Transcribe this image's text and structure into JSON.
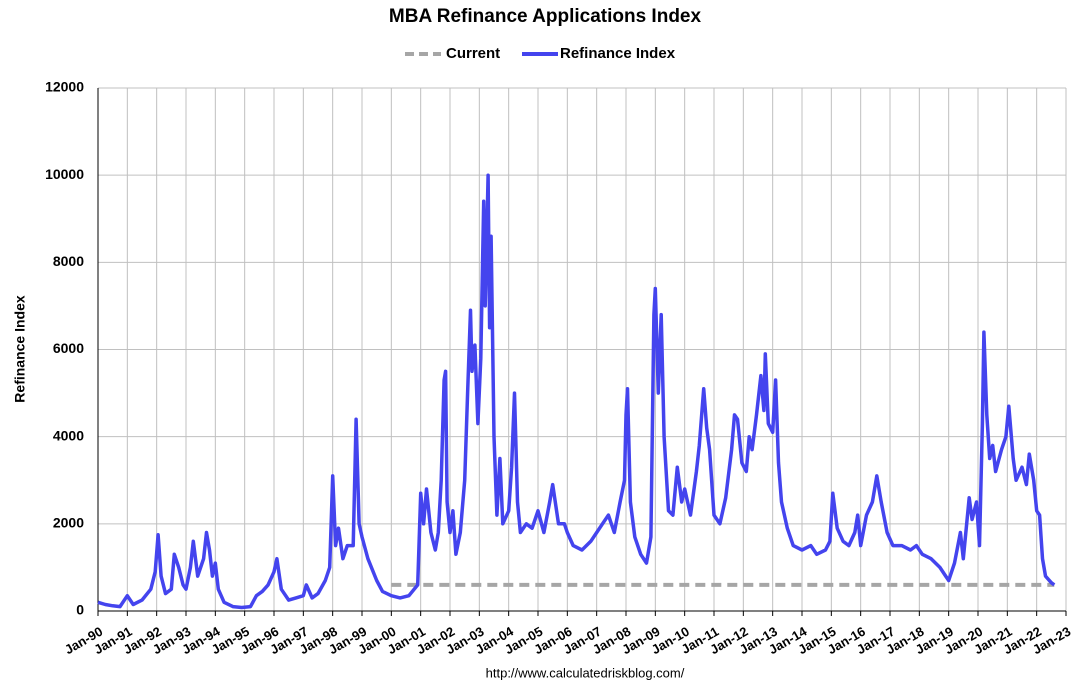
{
  "chart_data": {
    "type": "line",
    "title": "MBA Refinance Applications Index",
    "ylabel": "Refinance Index",
    "source": "http://www.calculatedriskblog.com/",
    "xlim": [
      1990,
      2023
    ],
    "ylim": [
      0,
      12000
    ],
    "yticks": [
      0,
      2000,
      4000,
      6000,
      8000,
      10000,
      12000
    ],
    "xticks": [
      {
        "value": 1990,
        "label": "Jan-90"
      },
      {
        "value": 1991,
        "label": "Jan-91"
      },
      {
        "value": 1992,
        "label": "Jan-92"
      },
      {
        "value": 1993,
        "label": "Jan-93"
      },
      {
        "value": 1994,
        "label": "Jan-94"
      },
      {
        "value": 1995,
        "label": "Jan-95"
      },
      {
        "value": 1996,
        "label": "Jan-96"
      },
      {
        "value": 1997,
        "label": "Jan-97"
      },
      {
        "value": 1998,
        "label": "Jan-98"
      },
      {
        "value": 1999,
        "label": "Jan-99"
      },
      {
        "value": 2000,
        "label": "Jan-00"
      },
      {
        "value": 2001,
        "label": "Jan-01"
      },
      {
        "value": 2002,
        "label": "Jan-02"
      },
      {
        "value": 2003,
        "label": "Jan-03"
      },
      {
        "value": 2004,
        "label": "Jan-04"
      },
      {
        "value": 2005,
        "label": "Jan-05"
      },
      {
        "value": 2006,
        "label": "Jan-06"
      },
      {
        "value": 2007,
        "label": "Jan-07"
      },
      {
        "value": 2008,
        "label": "Jan-08"
      },
      {
        "value": 2009,
        "label": "Jan-09"
      },
      {
        "value": 2010,
        "label": "Jan-10"
      },
      {
        "value": 2011,
        "label": "Jan-11"
      },
      {
        "value": 2012,
        "label": "Jan-12"
      },
      {
        "value": 2013,
        "label": "Jan-13"
      },
      {
        "value": 2014,
        "label": "Jan-14"
      },
      {
        "value": 2015,
        "label": "Jan-15"
      },
      {
        "value": 2016,
        "label": "Jan-16"
      },
      {
        "value": 2017,
        "label": "Jan-17"
      },
      {
        "value": 2018,
        "label": "Jan-18"
      },
      {
        "value": 2019,
        "label": "Jan-19"
      },
      {
        "value": 2020,
        "label": "Jan-20"
      },
      {
        "value": 2021,
        "label": "Jan-21"
      },
      {
        "value": 2022,
        "label": "Jan-22"
      },
      {
        "value": 2023,
        "label": "Jan-23"
      }
    ],
    "grid": true,
    "legend": "top",
    "series": [
      {
        "name": "Current",
        "color": "#a6a6a6",
        "dashed": true,
        "x": [
          2000,
          2022.6
        ],
        "values": [
          600,
          600
        ]
      },
      {
        "name": "Refinance Index",
        "color": "#4444ee",
        "dashed": false,
        "x": [
          1990,
          1990.25,
          1990.5,
          1990.75,
          1991,
          1991.2,
          1991.5,
          1991.8,
          1991.95,
          1992.05,
          1992.15,
          1992.3,
          1992.5,
          1992.6,
          1992.75,
          1992.9,
          1993,
          1993.15,
          1993.25,
          1993.4,
          1993.6,
          1993.7,
          1993.8,
          1993.9,
          1994,
          1994.1,
          1994.3,
          1994.6,
          1994.9,
          1995.2,
          1995.4,
          1995.6,
          1995.8,
          1996,
          1996.1,
          1996.25,
          1996.5,
          1996.75,
          1997,
          1997.1,
          1997.3,
          1997.5,
          1997.75,
          1997.9,
          1998,
          1998.1,
          1998.2,
          1998.35,
          1998.5,
          1998.7,
          1998.8,
          1998.9,
          1999,
          1999.2,
          1999.5,
          1999.7,
          2000,
          2000.3,
          2000.6,
          2000.9,
          2001,
          2001.1,
          2001.2,
          2001.35,
          2001.5,
          2001.6,
          2001.7,
          2001.8,
          2001.85,
          2001.9,
          2002,
          2002.1,
          2002.2,
          2002.35,
          2002.5,
          2002.6,
          2002.7,
          2002.75,
          2002.85,
          2002.95,
          2003.05,
          2003.15,
          2003.2,
          2003.3,
          2003.35,
          2003.4,
          2003.5,
          2003.6,
          2003.7,
          2003.8,
          2004,
          2004.1,
          2004.2,
          2004.3,
          2004.4,
          2004.6,
          2004.8,
          2005,
          2005.2,
          2005.4,
          2005.5,
          2005.7,
          2005.9,
          2006,
          2006.2,
          2006.5,
          2006.8,
          2007,
          2007.2,
          2007.4,
          2007.6,
          2007.8,
          2007.95,
          2008,
          2008.05,
          2008.15,
          2008.3,
          2008.5,
          2008.7,
          2008.85,
          2008.95,
          2009,
          2009.1,
          2009.2,
          2009.3,
          2009.45,
          2009.6,
          2009.75,
          2009.9,
          2010,
          2010.2,
          2010.4,
          2010.5,
          2010.65,
          2010.75,
          2010.85,
          2011,
          2011.2,
          2011.4,
          2011.6,
          2011.7,
          2011.8,
          2011.95,
          2012.1,
          2012.2,
          2012.3,
          2012.45,
          2012.6,
          2012.7,
          2012.75,
          2012.85,
          2013,
          2013.1,
          2013.2,
          2013.3,
          2013.5,
          2013.7,
          2014,
          2014.3,
          2014.5,
          2014.8,
          2014.95,
          2015.05,
          2015.2,
          2015.4,
          2015.6,
          2015.8,
          2015.9,
          2016,
          2016.2,
          2016.4,
          2016.55,
          2016.7,
          2016.9,
          2017.1,
          2017.4,
          2017.7,
          2017.9,
          2018.1,
          2018.4,
          2018.7,
          2018.9,
          2019,
          2019.2,
          2019.4,
          2019.5,
          2019.7,
          2019.8,
          2019.95,
          2020.05,
          2020.15,
          2020.2,
          2020.3,
          2020.4,
          2020.5,
          2020.6,
          2020.8,
          2020.95,
          2021.05,
          2021.2,
          2021.3,
          2021.5,
          2021.65,
          2021.75,
          2021.9,
          2022,
          2022.1,
          2022.2,
          2022.3,
          2022.5,
          2022.6
        ],
        "values": [
          200,
          150,
          120,
          100,
          350,
          150,
          250,
          500,
          900,
          1750,
          800,
          400,
          500,
          1300,
          1000,
          600,
          500,
          1000,
          1600,
          800,
          1200,
          1800,
          1400,
          800,
          1100,
          500,
          200,
          100,
          80,
          100,
          350,
          450,
          600,
          900,
          1200,
          500,
          250,
          300,
          350,
          600,
          300,
          400,
          700,
          1000,
          3100,
          1500,
          1900,
          1200,
          1500,
          1500,
          4400,
          2000,
          1700,
          1200,
          700,
          450,
          350,
          300,
          350,
          600,
          2700,
          2000,
          2800,
          1800,
          1400,
          1800,
          3000,
          5300,
          5500,
          2500,
          1800,
          2300,
          1300,
          1800,
          3000,
          5000,
          6900,
          5500,
          6100,
          4300,
          5800,
          9400,
          7000,
          10000,
          6500,
          8600,
          4000,
          2200,
          3500,
          2000,
          2300,
          3300,
          5000,
          2500,
          1800,
          2000,
          1900,
          2300,
          1800,
          2500,
          2900,
          2000,
          2000,
          1800,
          1500,
          1400,
          1600,
          1800,
          2000,
          2200,
          1800,
          2500,
          3000,
          4500,
          5100,
          2500,
          1700,
          1300,
          1100,
          1700,
          6800,
          7400,
          5000,
          6800,
          4000,
          2300,
          2200,
          3300,
          2500,
          2800,
          2200,
          3200,
          3800,
          5100,
          4200,
          3700,
          2200,
          2000,
          2600,
          3700,
          4500,
          4400,
          3400,
          3200,
          4000,
          3700,
          4500,
          5400,
          4600,
          5900,
          4300,
          4100,
          5300,
          3400,
          2500,
          1900,
          1500,
          1400,
          1500,
          1300,
          1400,
          1600,
          2700,
          1900,
          1600,
          1500,
          1800,
          2200,
          1500,
          2200,
          2500,
          3100,
          2500,
          1800,
          1500,
          1500,
          1400,
          1500,
          1300,
          1200,
          1000,
          800,
          700,
          1100,
          1800,
          1200,
          2600,
          2100,
          2500,
          1500,
          4300,
          6400,
          4500,
          3500,
          3800,
          3200,
          3700,
          4000,
          4700,
          3500,
          3000,
          3300,
          2900,
          3600,
          3000,
          2300,
          2200,
          1200,
          800,
          650,
          600
        ]
      }
    ]
  }
}
